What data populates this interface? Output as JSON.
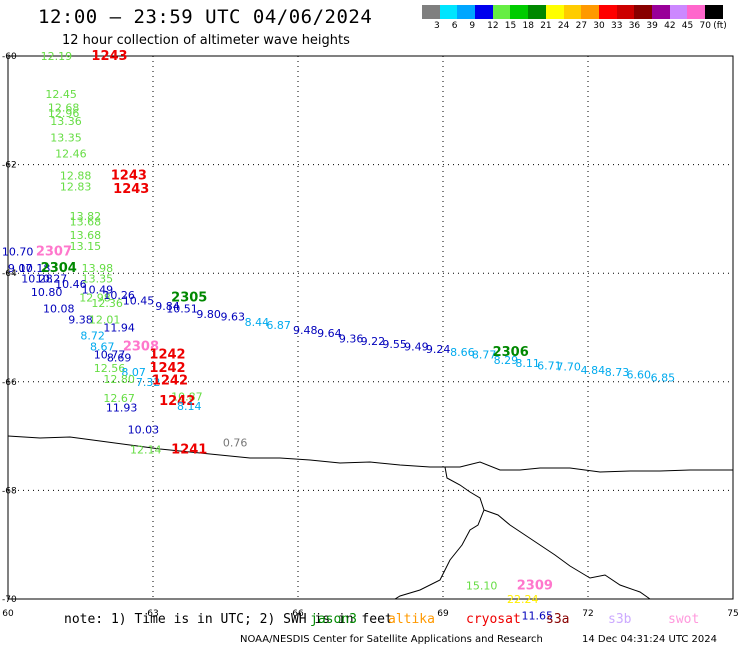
{
  "header": {
    "title": "12:00 — 23:59 UTC 04/06/2024",
    "subtitle": "12 hour collection of altimeter wave heights"
  },
  "legend": {
    "colors": [
      "#7f7f7f",
      "#00e5ff",
      "#00a6ff",
      "#0000ee",
      "#66ee44",
      "#00cc00",
      "#008800",
      "#ffff00",
      "#ffcc00",
      "#ff9900",
      "#ff0000",
      "#cc0000",
      "#880000",
      "#990099",
      "#cc88ff",
      "#ff66cc",
      "#000000"
    ],
    "labels": [
      "3",
      "6",
      "9",
      "12",
      "15",
      "18",
      "21",
      "24",
      "27",
      "30",
      "33",
      "36",
      "39",
      "42",
      "45",
      "70"
    ],
    "unit": "(ft)"
  },
  "axes": {
    "lat_labels": [
      "-60",
      "-62",
      "-64",
      "-66",
      "-68",
      "-70"
    ],
    "lon_labels": [
      "60",
      "63",
      "66",
      "69",
      "72",
      "75"
    ]
  },
  "annotations": [
    {
      "text": "12.19",
      "color": "#66dd44",
      "lon": 61.0,
      "lat": -60.0,
      "size": 11
    },
    {
      "text": "1243",
      "color": "#ee0000",
      "lon": 62.1,
      "lat": -60.0,
      "size": 13,
      "bold": true
    },
    {
      "text": "12.45",
      "color": "#66dd44",
      "lon": 61.1,
      "lat": -60.7,
      "size": 11
    },
    {
      "text": "12.68",
      "color": "#66dd44",
      "lon": 61.15,
      "lat": -60.95,
      "size": 11
    },
    {
      "text": "12.96",
      "color": "#66dd44",
      "lon": 61.15,
      "lat": -61.05,
      "size": 11
    },
    {
      "text": "13.36",
      "color": "#66dd44",
      "lon": 61.2,
      "lat": -61.2,
      "size": 11
    },
    {
      "text": "13.35",
      "color": "#66dd44",
      "lon": 61.2,
      "lat": -61.5,
      "size": 11
    },
    {
      "text": "12.46",
      "color": "#66dd44",
      "lon": 61.3,
      "lat": -61.8,
      "size": 11
    },
    {
      "text": "12.88",
      "color": "#66dd44",
      "lon": 61.4,
      "lat": -62.2,
      "size": 11
    },
    {
      "text": "12.83",
      "color": "#66dd44",
      "lon": 61.4,
      "lat": -62.4,
      "size": 11
    },
    {
      "text": "1243",
      "color": "#ee0000",
      "lon": 62.5,
      "lat": -62.2,
      "size": 13,
      "bold": true
    },
    {
      "text": "1243",
      "color": "#ee0000",
      "lon": 62.55,
      "lat": -62.45,
      "size": 13,
      "bold": true
    },
    {
      "text": "13.82",
      "color": "#66dd44",
      "lon": 61.6,
      "lat": -62.95,
      "size": 11
    },
    {
      "text": "13.68",
      "color": "#66dd44",
      "lon": 61.6,
      "lat": -63.05,
      "size": 11
    },
    {
      "text": "13.68",
      "color": "#66dd44",
      "lon": 61.6,
      "lat": -63.3,
      "size": 11
    },
    {
      "text": "13.15",
      "color": "#66dd44",
      "lon": 61.6,
      "lat": -63.5,
      "size": 11
    },
    {
      "text": "10.70",
      "color": "#0000bb",
      "lon": 60.2,
      "lat": -63.6,
      "size": 11
    },
    {
      "text": "2307",
      "color": "#ff77cc",
      "lon": 60.95,
      "lat": -63.6,
      "size": 13,
      "bold": true
    },
    {
      "text": "9.07",
      "color": "#0000bb",
      "lon": 60.25,
      "lat": -63.9,
      "size": 11
    },
    {
      "text": "10.18",
      "color": "#0000bb",
      "lon": 60.55,
      "lat": -63.9,
      "size": 11
    },
    {
      "text": "2304",
      "color": "#008800",
      "lon": 61.05,
      "lat": -63.9,
      "size": 13,
      "bold": true
    },
    {
      "text": "10.28",
      "color": "#0000bb",
      "lon": 60.6,
      "lat": -64.1,
      "size": 11
    },
    {
      "text": "10.27",
      "color": "#0000bb",
      "lon": 60.9,
      "lat": -64.1,
      "size": 11
    },
    {
      "text": "13.98",
      "color": "#66dd44",
      "lon": 61.85,
      "lat": -63.9,
      "size": 11
    },
    {
      "text": "13.35",
      "color": "#66dd44",
      "lon": 61.85,
      "lat": -64.1,
      "size": 11
    },
    {
      "text": "10.46",
      "color": "#0000bb",
      "lon": 61.3,
      "lat": -64.2,
      "size": 11
    },
    {
      "text": "10.49",
      "color": "#0000bb",
      "lon": 61.85,
      "lat": -64.3,
      "size": 11
    },
    {
      "text": "10.80",
      "color": "#0000bb",
      "lon": 60.8,
      "lat": -64.35,
      "size": 11
    },
    {
      "text": "12.98",
      "color": "#66dd44",
      "lon": 61.8,
      "lat": -64.45,
      "size": 11
    },
    {
      "text": "12.36",
      "color": "#66dd44",
      "lon": 62.05,
      "lat": -64.55,
      "size": 11
    },
    {
      "text": "10.26",
      "color": "#0000bb",
      "lon": 62.3,
      "lat": -64.4,
      "size": 11
    },
    {
      "text": "10.45",
      "color": "#0000bb",
      "lon": 62.7,
      "lat": -64.5,
      "size": 11
    },
    {
      "text": "2305",
      "color": "#008800",
      "lon": 63.75,
      "lat": -64.45,
      "size": 13,
      "bold": true
    },
    {
      "text": "9.84",
      "color": "#0000bb",
      "lon": 63.3,
      "lat": -64.6,
      "size": 11
    },
    {
      "text": "10.51",
      "color": "#0000bb",
      "lon": 63.6,
      "lat": -64.65,
      "size": 11
    },
    {
      "text": "10.08",
      "color": "#0000bb",
      "lon": 61.05,
      "lat": -64.65,
      "size": 11
    },
    {
      "text": "9.80",
      "color": "#0000bb",
      "lon": 64.15,
      "lat": -64.75,
      "size": 11
    },
    {
      "text": "9.63",
      "color": "#0000bb",
      "lon": 64.65,
      "lat": -64.8,
      "size": 11
    },
    {
      "text": "9.38",
      "color": "#0000bb",
      "lon": 61.5,
      "lat": -64.85,
      "size": 11
    },
    {
      "text": "12.01",
      "color": "#66dd44",
      "lon": 62.0,
      "lat": -64.85,
      "size": 11
    },
    {
      "text": "8.44",
      "color": "#00aaee",
      "lon": 65.15,
      "lat": -64.9,
      "size": 11
    },
    {
      "text": "6.87",
      "color": "#00aaee",
      "lon": 65.6,
      "lat": -64.95,
      "size": 11
    },
    {
      "text": "11.94",
      "color": "#0000bb",
      "lon": 62.3,
      "lat": -65.0,
      "size": 11
    },
    {
      "text": "9.48",
      "color": "#0000bb",
      "lon": 66.15,
      "lat": -65.05,
      "size": 11
    },
    {
      "text": "9.64",
      "color": "#0000bb",
      "lon": 66.65,
      "lat": -65.1,
      "size": 11
    },
    {
      "text": "8.72",
      "color": "#00aaee",
      "lon": 61.75,
      "lat": -65.15,
      "size": 11
    },
    {
      "text": "9.36",
      "color": "#0000bb",
      "lon": 67.1,
      "lat": -65.2,
      "size": 11
    },
    {
      "text": "9.22",
      "color": "#0000bb",
      "lon": 67.55,
      "lat": -65.25,
      "size": 11
    },
    {
      "text": "9.55",
      "color": "#0000bb",
      "lon": 68.0,
      "lat": -65.3,
      "size": 11
    },
    {
      "text": "9.49",
      "color": "#0000bb",
      "lon": 68.45,
      "lat": -65.35,
      "size": 11
    },
    {
      "text": "9.24",
      "color": "#0000bb",
      "lon": 68.9,
      "lat": -65.4,
      "size": 11
    },
    {
      "text": "8.66",
      "color": "#00aaee",
      "lon": 69.4,
      "lat": -65.45,
      "size": 11
    },
    {
      "text": "8.77",
      "color": "#00aaee",
      "lon": 69.85,
      "lat": -65.5,
      "size": 11
    },
    {
      "text": "8.29",
      "color": "#00aaee",
      "lon": 70.3,
      "lat": -65.6,
      "size": 11
    },
    {
      "text": "2306",
      "color": "#008800",
      "lon": 70.4,
      "lat": -65.45,
      "size": 13,
      "bold": true
    },
    {
      "text": "8.11",
      "color": "#00aaee",
      "lon": 70.75,
      "lat": -65.65,
      "size": 11
    },
    {
      "text": "6.71",
      "color": "#00aaee",
      "lon": 71.2,
      "lat": -65.7,
      "size": 11
    },
    {
      "text": "7.70",
      "color": "#00aaee",
      "lon": 71.6,
      "lat": -65.72,
      "size": 11
    },
    {
      "text": "4.84",
      "color": "#00aaee",
      "lon": 72.1,
      "lat": -65.78,
      "size": 11
    },
    {
      "text": "8.73",
      "color": "#00aaee",
      "lon": 72.6,
      "lat": -65.82,
      "size": 11
    },
    {
      "text": "6.60",
      "color": "#00aaee",
      "lon": 73.05,
      "lat": -65.87,
      "size": 11
    },
    {
      "text": "6.85",
      "color": "#00aaee",
      "lon": 73.55,
      "lat": -65.92,
      "size": 11
    },
    {
      "text": "8.67",
      "color": "#00aaee",
      "lon": 61.95,
      "lat": -65.35,
      "size": 11
    },
    {
      "text": "2308",
      "color": "#ff77cc",
      "lon": 62.75,
      "lat": -65.35,
      "size": 13,
      "bold": true
    },
    {
      "text": "10.77",
      "color": "#0000bb",
      "lon": 62.1,
      "lat": -65.5,
      "size": 11
    },
    {
      "text": "8.69",
      "color": "#0000bb",
      "lon": 62.3,
      "lat": -65.55,
      "size": 11
    },
    {
      "text": "1242",
      "color": "#ee0000",
      "lon": 63.3,
      "lat": -65.5,
      "size": 13,
      "bold": true
    },
    {
      "text": "12.56",
      "color": "#66dd44",
      "lon": 62.1,
      "lat": -65.75,
      "size": 11
    },
    {
      "text": "8.07",
      "color": "#00aaee",
      "lon": 62.6,
      "lat": -65.82,
      "size": 11
    },
    {
      "text": "1242",
      "color": "#ee0000",
      "lon": 63.3,
      "lat": -65.75,
      "size": 13,
      "bold": true
    },
    {
      "text": "12.80",
      "color": "#66dd44",
      "lon": 62.3,
      "lat": -65.95,
      "size": 11
    },
    {
      "text": "7.32",
      "color": "#00aaee",
      "lon": 62.9,
      "lat": -66.0,
      "size": 11
    },
    {
      "text": "1242",
      "color": "#ee0000",
      "lon": 63.35,
      "lat": -65.98,
      "size": 13,
      "bold": true
    },
    {
      "text": "12.67",
      "color": "#66dd44",
      "lon": 62.3,
      "lat": -66.3,
      "size": 11
    },
    {
      "text": "11.93",
      "color": "#0000bb",
      "lon": 62.35,
      "lat": -66.47,
      "size": 11
    },
    {
      "text": "10.87",
      "color": "#66dd44",
      "lon": 63.7,
      "lat": -66.27,
      "size": 11
    },
    {
      "text": "1242",
      "color": "#ee0000",
      "lon": 63.5,
      "lat": -66.35,
      "size": 13,
      "bold": true
    },
    {
      "text": "8.14",
      "color": "#00aaee",
      "lon": 63.75,
      "lat": -66.45,
      "size": 11
    },
    {
      "text": "10.03",
      "color": "#0000bb",
      "lon": 62.8,
      "lat": -66.88,
      "size": 11
    },
    {
      "text": "0.76",
      "color": "#777777",
      "lon": 64.7,
      "lat": -67.12,
      "size": 11
    },
    {
      "text": "12.14",
      "color": "#66dd44",
      "lon": 62.85,
      "lat": -67.25,
      "size": 11
    },
    {
      "text": "1241",
      "color": "#ee0000",
      "lon": 63.75,
      "lat": -67.25,
      "size": 13,
      "bold": true
    },
    {
      "text": "15.10",
      "color": "#66dd44",
      "lon": 69.8,
      "lat": -69.75,
      "size": 11
    },
    {
      "text": "2309",
      "color": "#ff77cc",
      "lon": 70.9,
      "lat": -69.75,
      "size": 13,
      "bold": true
    },
    {
      "text": "22.24",
      "color": "#ffee00",
      "lon": 70.65,
      "lat": -70.0,
      "size": 11
    },
    {
      "text": "11.65",
      "color": "#0000bb",
      "lon": 70.95,
      "lat": -70.3,
      "size": 11
    }
  ],
  "note": {
    "prefix": "note: 1) Time is in UTC; 2) SWH is in feet"
  },
  "satellites": [
    {
      "name": "jason3",
      "color": "#008800"
    },
    {
      "name": "altika",
      "color": "#ff9900"
    },
    {
      "name": "cryosat",
      "color": "#ee0000"
    },
    {
      "name": "s3a",
      "color": "#880000"
    },
    {
      "name": "s3b",
      "color": "#ccaaff"
    },
    {
      "name": "swot",
      "color": "#ff99dd"
    }
  ],
  "footer": {
    "left": "NOAA/NESDIS Center for Satellite Applications and Research",
    "right": "14 Dec 04:31:24 UTC 2024"
  }
}
